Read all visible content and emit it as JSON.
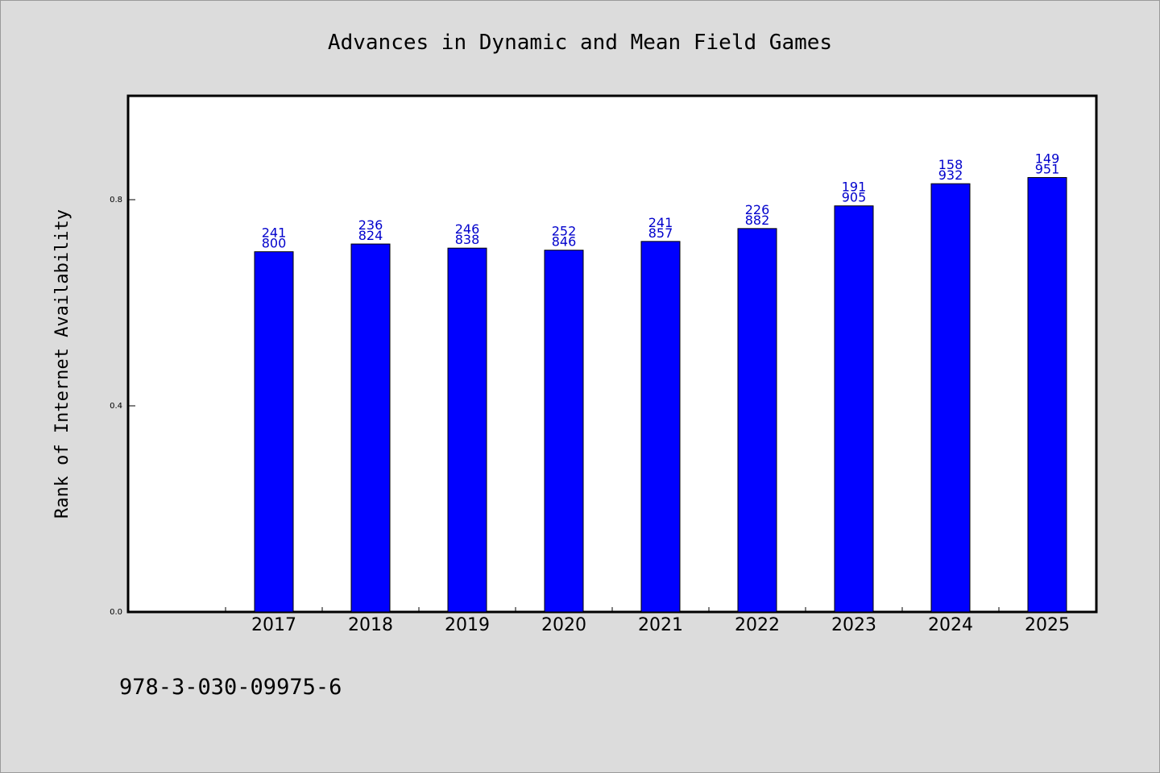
{
  "chart_data": {
    "type": "bar",
    "title": "Advances in Dynamic and Mean Field Games",
    "xlabel": "",
    "ylabel": "Rank of Internet Availability",
    "ylim": [
      0.0,
      1.0
    ],
    "yticks": [
      0.0,
      0.4,
      0.8
    ],
    "ytick_labels": [
      "0.0",
      "0.4",
      "0.8"
    ],
    "grid": false,
    "categories": [
      "2017",
      "2018",
      "2019",
      "2020",
      "2021",
      "2022",
      "2023",
      "2024",
      "2025"
    ],
    "values": [
      0.699,
      0.714,
      0.706,
      0.702,
      0.719,
      0.744,
      0.788,
      0.831,
      0.843
    ],
    "bar_labels": [
      [
        "241",
        "800"
      ],
      [
        "236",
        "824"
      ],
      [
        "246",
        "838"
      ],
      [
        "252",
        "846"
      ],
      [
        "241",
        "857"
      ],
      [
        "226",
        "882"
      ],
      [
        "191",
        "905"
      ],
      [
        "158",
        "932"
      ],
      [
        "149",
        "951"
      ]
    ],
    "bar_color": "#0000ff",
    "label_color": "#0000cc",
    "footnote": "978-3-030-09975-6"
  }
}
